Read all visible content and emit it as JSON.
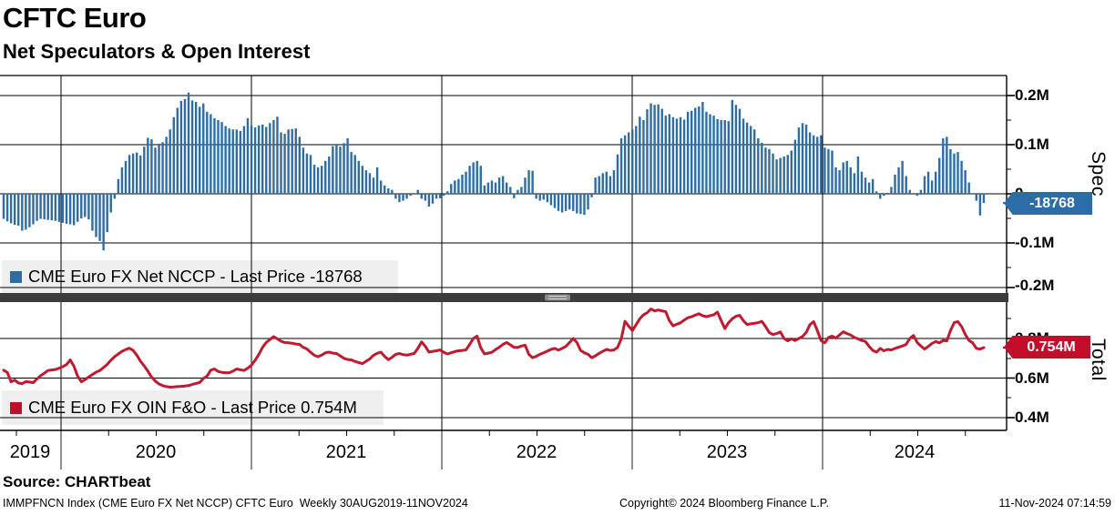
{
  "header": {
    "title": "CFTC Euro",
    "subtitle": "Net Speculators & Open Interest"
  },
  "top_panel": {
    "axis_title": "Spec",
    "tick_labels": [
      "0.2M",
      "0.1M",
      "0",
      "-0.1M",
      "-0.2M"
    ],
    "last_price_label": "-18768",
    "legend_label": "CME Euro FX Net NCCP - Last Price -18768"
  },
  "bottom_panel": {
    "axis_title": "Total",
    "tick_labels": [
      "0.8M",
      "0.6M",
      "0.4M"
    ],
    "last_price_label": "0.754M",
    "legend_label": "CME Euro FX OIN F&O - Last Price 0.754M"
  },
  "x_axis": {
    "years": [
      "2019",
      "2020",
      "2021",
      "2022",
      "2023",
      "2024"
    ]
  },
  "source_line": "Source: CHARTbeat",
  "footer": {
    "left": "IMMPFNCN Index (CME Euro FX Net NCCP) CFTC Euro  Weekly 30AUG2019-11NOV2024",
    "center": "Copyright© 2024 Bloomberg Finance L.P.",
    "right": "11-Nov-2024 07:14:59"
  },
  "colors": {
    "bar": "#2E6CA4",
    "line": "#C01A30",
    "badge_spec": "#2B6CA9",
    "badge_total": "#C00E2B",
    "legend_bg": "#EFEFEF",
    "separator": "#3C3C3C",
    "grid": "#000000"
  },
  "chart_data": [
    {
      "type": "bar",
      "name": "CME Euro FX Net NCCP",
      "frequency": "Weekly",
      "date_range": "30AUG2019-11NOV2024",
      "units": "thousands of contracts",
      "last_price": -18768,
      "axis": {
        "side": "right",
        "title": "Spec",
        "tick_labels": [
          "0.2M",
          "0.1M",
          "0",
          "-0.1M",
          "-0.2M"
        ],
        "ylim_thousands": [
          -200,
          240
        ]
      },
      "values_k": [
        -51,
        -56,
        -60,
        -63,
        -65,
        -75,
        -73,
        -68,
        -62,
        -55,
        -51,
        -52,
        -53,
        -54,
        -55,
        -57,
        -59,
        -61,
        -62,
        -64,
        -57,
        -50,
        -47,
        -52,
        -75,
        -88,
        -96,
        -115,
        -78,
        -38,
        -10,
        30,
        54,
        67,
        79,
        82,
        84,
        78,
        96,
        114,
        111,
        94,
        102,
        105,
        116,
        131,
        156,
        175,
        189,
        193,
        206,
        190,
        187,
        177,
        184,
        167,
        162,
        154,
        150,
        146,
        138,
        133,
        131,
        131,
        128,
        138,
        154,
        139,
        135,
        139,
        141,
        136,
        144,
        150,
        157,
        125,
        122,
        131,
        132,
        133,
        116,
        94,
        82,
        79,
        59,
        54,
        57,
        67,
        76,
        97,
        100,
        96,
        103,
        113,
        85,
        79,
        67,
        57,
        48,
        42,
        33,
        54,
        27,
        17,
        11,
        8,
        -10,
        -17,
        -14,
        -10,
        -4,
        0,
        8,
        -10,
        -14,
        -26,
        -20,
        -10,
        -9,
        -4,
        5,
        20,
        27,
        30,
        39,
        45,
        57,
        64,
        67,
        57,
        17,
        23,
        27,
        23,
        33,
        36,
        23,
        14,
        -9,
        8,
        14,
        33,
        48,
        47,
        -10,
        -14,
        -12,
        -17,
        -23,
        -29,
        -35,
        -38,
        -35,
        -32,
        -35,
        -40,
        -41,
        -43,
        -32,
        -7,
        33,
        36,
        42,
        45,
        36,
        48,
        80,
        113,
        119,
        125,
        131,
        138,
        157,
        150,
        172,
        184,
        181,
        182,
        173,
        159,
        162,
        156,
        153,
        156,
        151,
        167,
        169,
        175,
        178,
        187,
        167,
        162,
        159,
        152,
        150,
        150,
        148,
        191,
        181,
        173,
        153,
        145,
        138,
        131,
        113,
        104,
        94,
        91,
        82,
        70,
        73,
        76,
        79,
        88,
        110,
        135,
        144,
        141,
        125,
        119,
        116,
        119,
        94,
        91,
        88,
        54,
        48,
        64,
        67,
        54,
        42,
        76,
        45,
        33,
        23,
        30,
        5,
        -10,
        -4,
        2,
        14,
        39,
        54,
        67,
        36,
        8,
        -1,
        -4,
        8,
        36,
        45,
        27,
        45,
        73,
        113,
        116,
        91,
        82,
        85,
        67,
        48,
        23,
        -1,
        -14,
        -44,
        -18.768
      ]
    },
    {
      "type": "line",
      "name": "CME Euro FX OIN F&O",
      "frequency": "Weekly",
      "date_range": "30AUG2019-11NOV2024",
      "units": "millions of contracts",
      "last_price": 0.754,
      "axis": {
        "side": "right",
        "title": "Total",
        "tick_labels": [
          "0.8M",
          "0.6M",
          "0.4M"
        ],
        "ylim_millions": [
          0.34,
          0.98
        ]
      },
      "values_m": [
        0.64,
        0.628,
        0.581,
        0.59,
        0.575,
        0.572,
        0.582,
        0.58,
        0.577,
        0.595,
        0.612,
        0.625,
        0.638,
        0.641,
        0.643,
        0.65,
        0.658,
        0.668,
        0.692,
        0.66,
        0.61,
        0.581,
        0.592,
        0.605,
        0.618,
        0.63,
        0.638,
        0.653,
        0.669,
        0.69,
        0.708,
        0.722,
        0.735,
        0.744,
        0.751,
        0.74,
        0.716,
        0.685,
        0.661,
        0.635,
        0.605,
        0.585,
        0.57,
        0.562,
        0.557,
        0.554,
        0.555,
        0.557,
        0.558,
        0.56,
        0.562,
        0.568,
        0.573,
        0.578,
        0.598,
        0.61,
        0.64,
        0.646,
        0.633,
        0.629,
        0.627,
        0.627,
        0.635,
        0.646,
        0.642,
        0.638,
        0.65,
        0.665,
        0.69,
        0.72,
        0.755,
        0.78,
        0.795,
        0.809,
        0.798,
        0.786,
        0.78,
        0.778,
        0.776,
        0.772,
        0.77,
        0.755,
        0.747,
        0.73,
        0.715,
        0.708,
        0.716,
        0.728,
        0.731,
        0.726,
        0.724,
        0.712,
        0.7,
        0.694,
        0.692,
        0.684,
        0.678,
        0.673,
        0.685,
        0.697,
        0.715,
        0.725,
        0.731,
        0.71,
        0.693,
        0.705,
        0.72,
        0.724,
        0.718,
        0.716,
        0.72,
        0.724,
        0.75,
        0.783,
        0.76,
        0.731,
        0.735,
        0.738,
        0.742,
        0.73,
        0.722,
        0.728,
        0.734,
        0.738,
        0.74,
        0.742,
        0.77,
        0.8,
        0.812,
        0.752,
        0.722,
        0.726,
        0.73,
        0.744,
        0.756,
        0.77,
        0.78,
        0.768,
        0.755,
        0.755,
        0.762,
        0.766,
        0.72,
        0.703,
        0.71,
        0.72,
        0.728,
        0.736,
        0.745,
        0.75,
        0.741,
        0.75,
        0.76,
        0.78,
        0.8,
        0.78,
        0.74,
        0.728,
        0.72,
        0.703,
        0.712,
        0.725,
        0.735,
        0.745,
        0.74,
        0.742,
        0.755,
        0.8,
        0.887,
        0.862,
        0.84,
        0.87,
        0.9,
        0.92,
        0.93,
        0.949,
        0.94,
        0.944,
        0.94,
        0.935,
        0.89,
        0.864,
        0.872,
        0.879,
        0.893,
        0.905,
        0.91,
        0.918,
        0.925,
        0.915,
        0.91,
        0.915,
        0.92,
        0.933,
        0.89,
        0.85,
        0.88,
        0.9,
        0.912,
        0.917,
        0.89,
        0.871,
        0.874,
        0.877,
        0.88,
        0.887,
        0.86,
        0.83,
        0.82,
        0.825,
        0.833,
        0.8,
        0.788,
        0.798,
        0.79,
        0.8,
        0.81,
        0.831,
        0.87,
        0.885,
        0.84,
        0.79,
        0.778,
        0.805,
        0.812,
        0.802,
        0.818,
        0.834,
        0.825,
        0.818,
        0.805,
        0.798,
        0.79,
        0.785,
        0.76,
        0.74,
        0.731,
        0.75,
        0.738,
        0.745,
        0.742,
        0.75,
        0.756,
        0.762,
        0.77,
        0.8,
        0.815,
        0.78,
        0.762,
        0.746,
        0.76,
        0.775,
        0.785,
        0.778,
        0.79,
        0.788,
        0.84,
        0.88,
        0.885,
        0.86,
        0.82,
        0.79,
        0.778,
        0.75,
        0.746,
        0.754
      ]
    }
  ]
}
